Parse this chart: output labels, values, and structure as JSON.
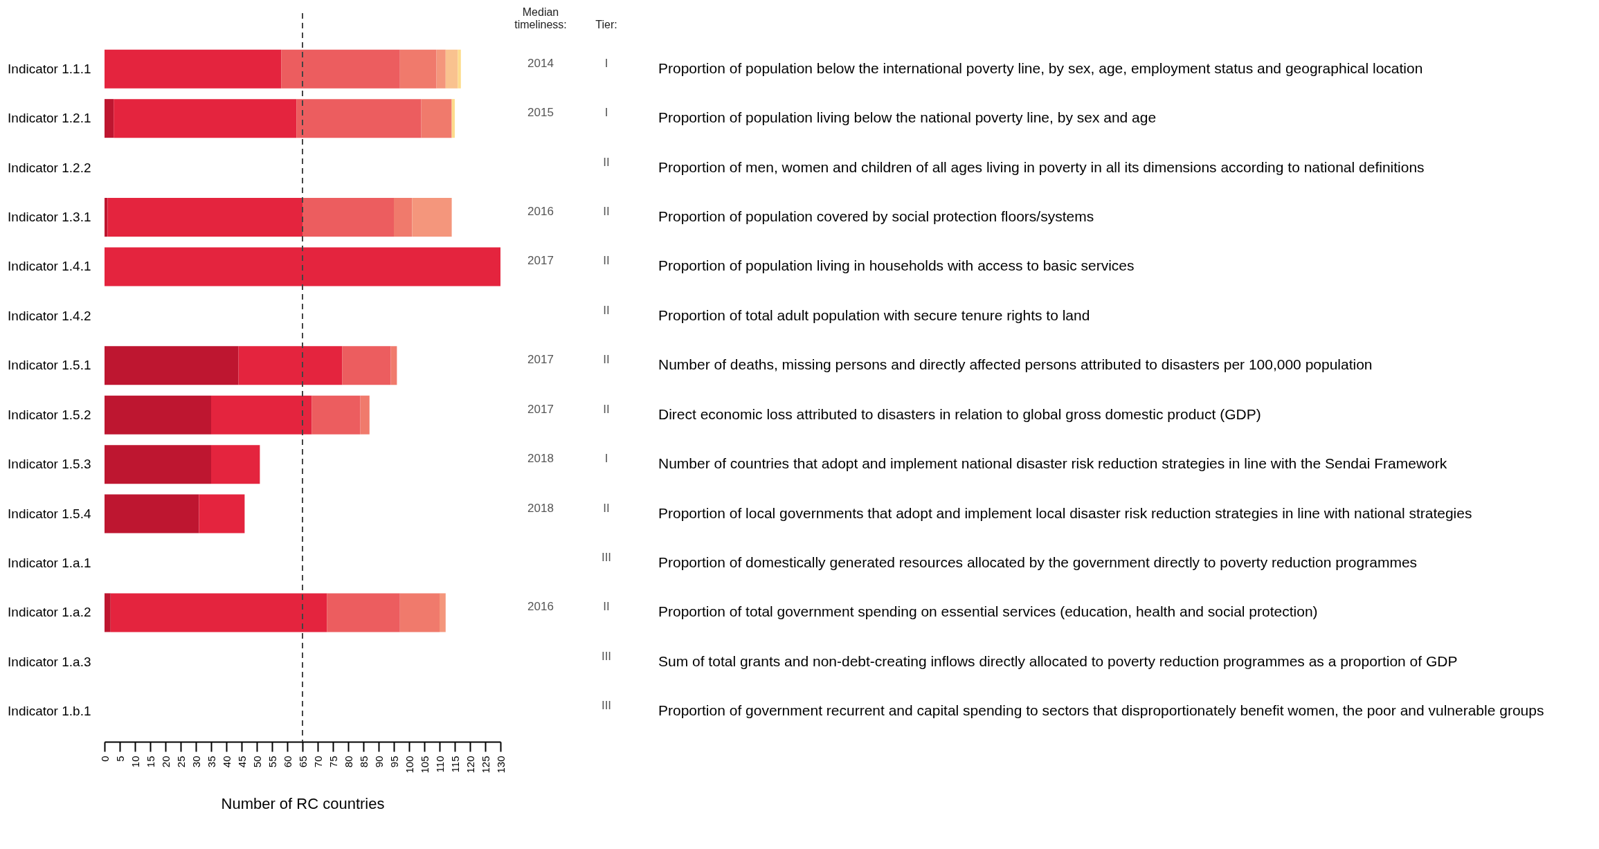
{
  "chart_data": {
    "type": "bar",
    "orientation": "horizontal",
    "stacked": true,
    "xlabel": "Number of RC countries",
    "categories": [
      "Indicator 1.1.1",
      "Indicator 1.2.1",
      "Indicator 1.2.2",
      "Indicator 1.3.1",
      "Indicator 1.4.1",
      "Indicator 1.4.2",
      "Indicator 1.5.1",
      "Indicator 1.5.2",
      "Indicator 1.5.3",
      "Indicator 1.5.4",
      "Indicator 1.a.1",
      "Indicator 1.a.2",
      "Indicator 1.a.3",
      "Indicator 1.b.1"
    ],
    "series": [
      {
        "color": "#be1630",
        "values": [
          null,
          3,
          null,
          1,
          null,
          null,
          44,
          35,
          35,
          31,
          null,
          2,
          null,
          null
        ]
      },
      {
        "color": "#e4243e",
        "values": [
          58,
          60,
          null,
          64,
          130,
          null,
          34,
          33,
          16,
          15,
          null,
          71,
          null,
          null
        ]
      },
      {
        "color": "#ec5d5f",
        "values": [
          39,
          41,
          null,
          30,
          null,
          null,
          16,
          16,
          null,
          null,
          null,
          24,
          null,
          null
        ]
      },
      {
        "color": "#f07a6c",
        "values": [
          12,
          10,
          null,
          6,
          null,
          null,
          2,
          3,
          null,
          null,
          null,
          13,
          null,
          null
        ]
      },
      {
        "color": "#f4967c",
        "values": [
          3,
          null,
          null,
          13,
          null,
          null,
          null,
          null,
          null,
          null,
          null,
          2,
          null,
          null
        ]
      },
      {
        "color": "#f9c28f",
        "values": [
          4,
          null,
          null,
          null,
          null,
          null,
          null,
          null,
          null,
          null,
          null,
          null,
          null,
          null
        ]
      },
      {
        "color": "#fddc8c",
        "values": [
          1,
          1,
          null,
          null,
          null,
          null,
          null,
          null,
          null,
          null,
          null,
          null,
          null,
          null
        ]
      }
    ],
    "xlim": [
      0,
      130
    ],
    "xticks": [
      0,
      5,
      10,
      15,
      20,
      25,
      30,
      35,
      40,
      45,
      50,
      55,
      60,
      65,
      70,
      75,
      80,
      85,
      90,
      95,
      100,
      105,
      110,
      115,
      120,
      125,
      130
    ],
    "ref_lines": [
      {
        "axis": "x",
        "value": 65,
        "line_style": "dashed",
        "color": "#444444"
      }
    ],
    "grid": false,
    "legend": false,
    "annotations": [
      "Median timeliness:",
      "Tier:",
      "2014",
      "I",
      "Proportion of population below the international poverty line, by sex, age, employment status and geographical location",
      "2015",
      "I",
      "Proportion of population living below the national poverty line, by sex and age",
      "II",
      "Proportion of men, women and children of all ages living in poverty in all its dimensions according to national definitions",
      "2016",
      "II",
      "Proportion of population covered by social protection floors/systems",
      "2017",
      "II",
      "Proportion of population living in households with access to basic services",
      "II",
      "Proportion of total adult population with secure tenure rights to land",
      "2017",
      "II",
      "Number of deaths, missing persons and directly affected persons attributed to disasters per 100,000 population",
      "2017",
      "II",
      "Direct economic loss attributed to disasters in relation to global gross domestic product (GDP)",
      "2018",
      "I",
      "Number of countries that adopt and implement national disaster risk reduction strategies in line with the Sendai Framework",
      "2018",
      "II",
      "Proportion of local governments that adopt and implement local disaster risk reduction strategies in line with national strategies",
      "III",
      "Proportion of domestically generated resources allocated by the government directly to poverty reduction programmes",
      "2016",
      "II",
      "Proportion of total government spending on essential services (education, health and social protection)",
      "III",
      "Sum of total grants and non-debt-creating inflows directly allocated to poverty reduction programmes as a proportion of GDP",
      "III",
      "Proportion of government recurrent and capital spending to sectors that disproportionately benefit women, the poor and vulnerable groups"
    ]
  }
}
